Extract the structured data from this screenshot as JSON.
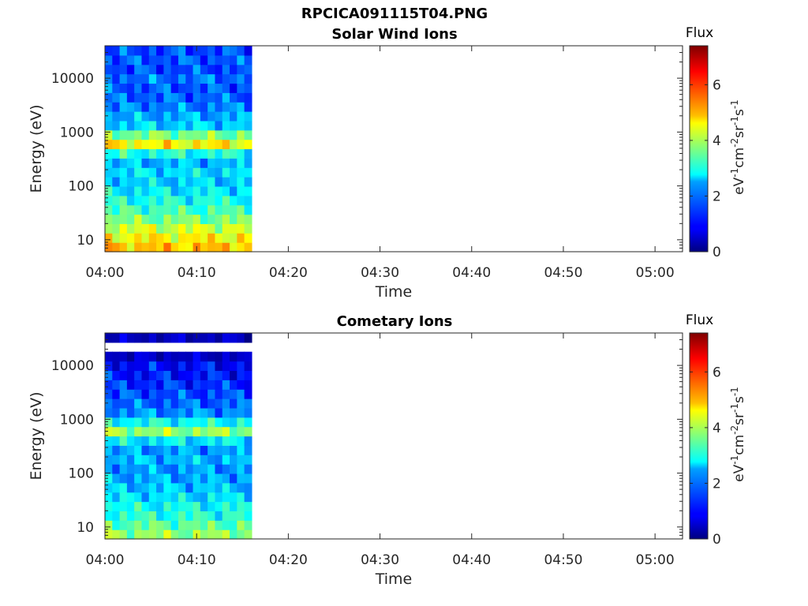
{
  "figure": {
    "title": "RPCICA091115T04.PNG"
  },
  "chart_data": [
    {
      "type": "heatmap",
      "title": "Solar Wind Ions",
      "xlabel": "Time",
      "ylabel": "Energy (eV)",
      "x_ticks": [
        "04:00",
        "04:10",
        "04:20",
        "04:30",
        "04:40",
        "04:50",
        "05:00"
      ],
      "y_ticks": [
        "10",
        "100",
        "1000",
        "10000"
      ],
      "y_scale": "log",
      "x_range": [
        "04:00",
        "05:03"
      ],
      "y_range": [
        6,
        40000
      ],
      "data_time_range": [
        "04:00",
        "04:16"
      ],
      "colorbar": {
        "title": "Flux",
        "label": "eV-1cm-2sr-1s-1",
        "ticks": [
          "0",
          "2",
          "4",
          "6"
        ],
        "range": [
          0,
          7.4
        ],
        "colormap": "jet"
      },
      "columns_per_sweep": 2,
      "sweep_count": 10,
      "values_by_energy": {
        "note_rows_low_to_high_energy": "",
        "flux_profile": [
          5.0,
          4.6,
          4.2,
          3.6,
          3.2,
          2.9,
          2.6,
          2.4,
          2.5,
          2.2,
          2.9,
          4.6,
          3.6,
          2.4,
          2.1,
          1.8,
          1.6,
          1.5,
          1.7,
          1.4,
          1.5,
          1.4
        ]
      }
    },
    {
      "type": "heatmap",
      "title": "Cometary Ions",
      "xlabel": "Time",
      "ylabel": "Energy (eV)",
      "x_ticks": [
        "04:00",
        "04:10",
        "04:20",
        "04:30",
        "04:40",
        "04:50",
        "05:00"
      ],
      "y_ticks": [
        "10",
        "100",
        "1000",
        "10000"
      ],
      "y_scale": "log",
      "x_range": [
        "04:00",
        "05:03"
      ],
      "y_range": [
        6,
        40000
      ],
      "data_time_range": [
        "04:00",
        "04:16"
      ],
      "colorbar": {
        "title": "Flux",
        "label": "eV-1cm-2sr-1s-1",
        "ticks": [
          "0",
          "2",
          "4",
          "6"
        ],
        "range": [
          0,
          7.4
        ],
        "colormap": "jet"
      },
      "columns_per_sweep": 2,
      "sweep_count": 10,
      "values_by_energy": {
        "flux_profile": [
          3.8,
          3.4,
          3.0,
          2.8,
          2.5,
          2.3,
          2.1,
          2.0,
          2.2,
          2.0,
          2.6,
          3.8,
          2.8,
          1.9,
          1.6,
          1.4,
          1.2,
          1.0,
          0.9,
          0.8,
          0.8,
          0.7
        ]
      }
    }
  ]
}
